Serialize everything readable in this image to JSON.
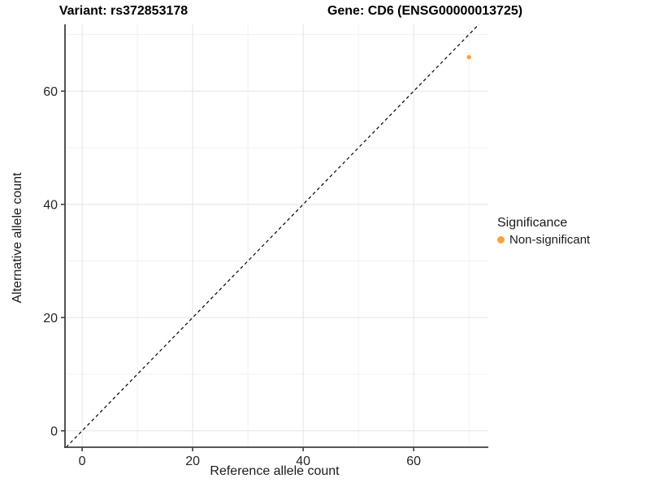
{
  "figure": {
    "title_variant": "Variant: rs372853178",
    "title_gene": "Gene: CD6 (ENSG00000013725)"
  },
  "chart_data": {
    "type": "scatter",
    "titles": [
      "Variant: rs372853178",
      "Gene: CD6 (ENSG00000013725)"
    ],
    "xlabel": "Reference allele count",
    "ylabel": "Alternative allele count",
    "xlim": [
      -3.1,
      73.5
    ],
    "ylim": [
      -2.9,
      71.8
    ],
    "x_ticks": [
      0,
      20,
      40,
      60
    ],
    "y_ticks": [
      0,
      20,
      40,
      60
    ],
    "x_minor_gridlines": [
      10,
      30,
      50,
      70
    ],
    "y_minor_gridlines": [
      10,
      30,
      50,
      70
    ],
    "grid": "major and minor, light gray on white",
    "reference_line": {
      "type": "abline",
      "slope": 1,
      "intercept": 0,
      "linetype": "dashed",
      "color": "#000000"
    },
    "series": [
      {
        "name": "Non-significant",
        "color": "#FCA33C",
        "points": [
          {
            "x": 70,
            "y": 66
          }
        ]
      }
    ],
    "legend": {
      "title": "Significance",
      "position": "right",
      "items": [
        {
          "label": "Non-significant",
          "color": "#FCA33C"
        }
      ]
    },
    "colors": {
      "major_grid": "#E3E3E3",
      "minor_grid": "#F1F1F1",
      "axis_line": "#404040",
      "point": "#FCA33C"
    }
  }
}
